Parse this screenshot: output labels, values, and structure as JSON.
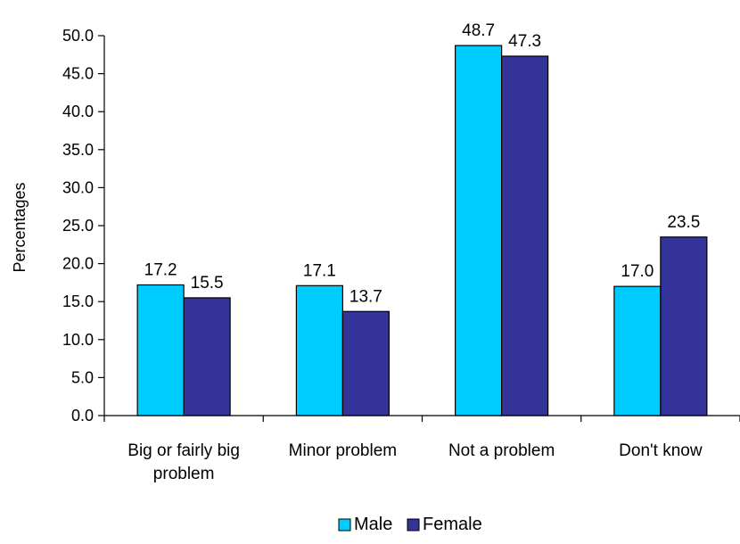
{
  "chart_data": {
    "type": "bar",
    "title": "",
    "xlabel": "",
    "ylabel": "Percentages",
    "ylim": [
      0,
      50
    ],
    "ytick_step": 5,
    "ytick_labels": [
      "0.0",
      "5.0",
      "10.0",
      "15.0",
      "20.0",
      "25.0",
      "30.0",
      "35.0",
      "40.0",
      "45.0",
      "50.0"
    ],
    "categories": [
      [
        "Big or fairly big",
        "problem"
      ],
      [
        "Minor problem"
      ],
      [
        "Not a problem"
      ],
      [
        "Don't know"
      ]
    ],
    "series": [
      {
        "name": "Male",
        "color": "#00ccff",
        "values": [
          17.2,
          17.1,
          48.7,
          17.0
        ],
        "labels": [
          "17.2",
          "17.1",
          "48.7",
          "17.0"
        ]
      },
      {
        "name": "Female",
        "color": "#333399",
        "values": [
          15.5,
          13.7,
          47.3,
          23.5
        ],
        "labels": [
          "15.5",
          "13.7",
          "47.3",
          "23.5"
        ]
      }
    ],
    "grid": false,
    "legend_position": "bottom"
  }
}
